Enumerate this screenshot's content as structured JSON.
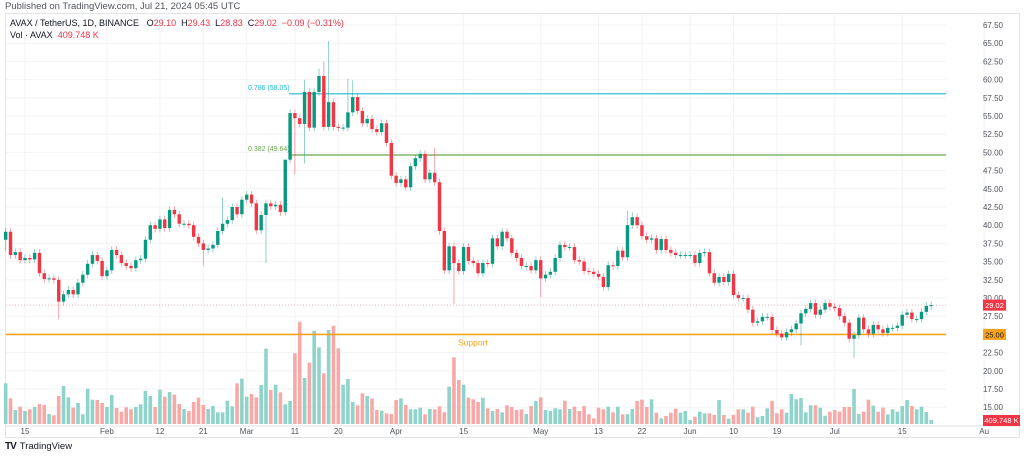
{
  "header": {
    "published": "Published on TradingView.com, Jul 21, 2024 05:45 UTC",
    "symbol": "AVAX / TetherUS, 1D, BINANCE",
    "o_label": "O",
    "o": "29.10",
    "h_label": "H",
    "h": "29.43",
    "l_label": "L",
    "l": "28.83",
    "c_label": "C",
    "c": "29.02",
    "change": "−0.09 (−0.31%)",
    "vol_label": "Vol · AVAX",
    "vol": "409.748 K"
  },
  "footer": {
    "brand": "TradingView",
    "logo": "TV"
  },
  "colors": {
    "up": "#089981",
    "down": "#f23645",
    "up_vol": "#8fd4ca",
    "down_vol": "#f7a9a7",
    "support": "#f7a21b",
    "fib_786": "#22b8d6",
    "fib_382": "#6aa84f",
    "grid": "#f2f3f6"
  },
  "chart_data": {
    "type": "candlestick",
    "interval": "1D",
    "first_date": "2024-01-11",
    "last_date": "2024-07-21",
    "ylim": [
      13.5,
      68.5
    ],
    "grid": true,
    "y_ticks": [
      "67.50",
      "65.00",
      "62.50",
      "60.00",
      "57.50",
      "55.00",
      "52.50",
      "50.00",
      "47.50",
      "45.00",
      "42.50",
      "40.00",
      "37.50",
      "35.00",
      "32.50",
      "30.00",
      "27.50",
      "22.50",
      "20.00",
      "17.50",
      "15.00"
    ],
    "x_ticks": [
      {
        "label": "15",
        "index": 4
      },
      {
        "label": "Feb",
        "index": 21
      },
      {
        "label": "12",
        "index": 32
      },
      {
        "label": "21",
        "index": 41
      },
      {
        "label": "Mar",
        "index": 50
      },
      {
        "label": "11",
        "index": 60
      },
      {
        "label": "20",
        "index": 69
      },
      {
        "label": "Apr",
        "index": 81
      },
      {
        "label": "15",
        "index": 95
      },
      {
        "label": "May",
        "index": 111
      },
      {
        "label": "13",
        "index": 123
      },
      {
        "label": "22",
        "index": 132
      },
      {
        "label": "Jun",
        "index": 142
      },
      {
        "label": "10",
        "index": 151
      },
      {
        "label": "19",
        "index": 160
      },
      {
        "label": "Jul",
        "index": 172
      },
      {
        "label": "15",
        "index": 186
      },
      {
        "label": "Au",
        "index": 203
      }
    ],
    "first_open": 38.0,
    "closes": [
      39.1,
      35.9,
      36.3,
      35.2,
      35.5,
      35.3,
      36.2,
      33.4,
      32.6,
      32.7,
      32.5,
      29.5,
      30.5,
      31.1,
      30.5,
      32.1,
      33.2,
      34.7,
      35.9,
      35.1,
      33.0,
      33.8,
      36.6,
      35.9,
      34.8,
      34.4,
      34.1,
      35.2,
      35.4,
      38.0,
      40.0,
      39.5,
      40.8,
      39.6,
      42.1,
      41.5,
      40.2,
      40.2,
      40.0,
      38.4,
      37.5,
      36.6,
      36.8,
      37.3,
      39.2,
      40.2,
      40.7,
      42.5,
      41.5,
      43.5,
      44.2,
      43.0,
      39.3,
      41.4,
      43.0,
      42.6,
      42.8,
      41.8,
      49.0,
      55.4,
      54.7,
      53.9,
      58.3,
      53.4,
      58.3,
      60.5,
      53.5,
      56.9,
      53.5,
      53.4,
      53.4,
      55.5,
      57.6,
      55.7,
      54.0,
      54.6,
      53.2,
      52.8,
      54.0,
      51.3,
      46.8,
      45.8,
      46.3,
      45.2,
      48.1,
      49.2,
      49.8,
      46.3,
      47.2,
      45.9,
      39.2,
      33.8,
      37.1,
      34.8,
      33.7,
      37.0,
      35.1,
      34.8,
      33.4,
      34.8,
      34.7,
      38.2,
      37.1,
      39.1,
      38.2,
      36.2,
      35.5,
      34.4,
      34.4,
      33.8,
      35.2,
      32.7,
      33.2,
      33.6,
      35.5,
      37.3,
      37.0,
      37.0,
      35.2,
      35.0,
      33.7,
      33.6,
      33.3,
      32.9,
      31.5,
      34.5,
      34.4,
      36.5,
      35.6,
      40.0,
      41.1,
      40.0,
      38.5,
      38.0,
      38.2,
      36.6,
      38.1,
      36.6,
      36.2,
      35.9,
      35.9,
      35.9,
      35.9,
      34.8,
      36.2,
      36.3,
      33.4,
      32.1,
      32.9,
      32.2,
      33.3,
      30.4,
      30.0,
      30.0,
      28.4,
      26.6,
      26.8,
      27.4,
      27.4,
      25.6,
      25.1,
      24.6,
      25.3,
      25.7,
      26.5,
      27.9,
      28.5,
      29.3,
      27.7,
      28.4,
      29.3,
      28.8,
      28.6,
      27.5,
      26.6,
      24.4,
      24.9,
      27.3,
      25.7,
      25.1,
      26.3,
      25.7,
      25.2,
      25.9,
      25.9,
      26.2,
      27.7,
      28.0,
      27.1,
      27.1,
      28.1,
      28.9,
      29.02
    ],
    "notable_highs": {
      "45": 43.8,
      "58": 45.0,
      "62": 60.0,
      "65": 61.5,
      "66": 62.5,
      "67": 65.3,
      "71": 60.1,
      "72": 59.9,
      "89": 50.6,
      "129": 42.0,
      "130": 41.8
    },
    "notable_lows": {
      "0": 36.5,
      "11": 27.1,
      "41": 34.5,
      "54": 34.8,
      "60": 47.0,
      "62": 48.5,
      "93": 29.2,
      "111": 30.1,
      "165": 23.5,
      "176": 21.7
    },
    "volume_k": [
      4070,
      2570,
      1400,
      1730,
      1300,
      1470,
      1700,
      2000,
      1900,
      1000,
      870,
      2800,
      3800,
      2670,
      1630,
      2100,
      970,
      3530,
      2430,
      2400,
      2100,
      1700,
      2900,
      1600,
      1230,
      1670,
      1470,
      1700,
      1970,
      3300,
      2800,
      1700,
      3430,
      2730,
      3200,
      2930,
      2000,
      1500,
      1300,
      2200,
      2630,
      1900,
      1500,
      1800,
      1170,
      1170,
      2330,
      1770,
      4070,
      4530,
      2730,
      3000,
      2670,
      3900,
      7530,
      3400,
      3930,
      3170,
      1970,
      2300,
      7070,
      10230,
      4600,
      6130,
      9330,
      7670,
      5070,
      9400,
      9830,
      7570,
      3930,
      4500,
      2200,
      1870,
      3070,
      2800,
      2570,
      1400,
      1330,
      1070,
      1000,
      2400,
      2570,
      1900,
      1470,
      1470,
      1630,
      970,
      1500,
      1470,
      1770,
      1170,
      3730,
      6670,
      4400,
      3930,
      2630,
      2470,
      2200,
      2630,
      1570,
      1300,
      1500,
      1170,
      1870,
      1700,
      1400,
      1470,
      1000,
      1800,
      2300,
      2670,
      1400,
      1300,
      1570,
      1470,
      2330,
      1500,
      1730,
      1300,
      1800,
      970,
      570,
      1630,
      1470,
      1730,
      1170,
      1730,
      970,
      970,
      1500,
      2300,
      2430,
      1700,
      2470,
      1130,
      570,
      800,
      1130,
      1530,
      1130,
      1300,
      400,
      730,
      1230,
      1070,
      1070,
      900,
      2400,
      900,
      530,
      900,
      1470,
      1470,
      1130,
      1730,
      670,
      800,
      1570,
      2300,
      1070,
      1470,
      1130,
      3000,
      2470,
      2600,
      1170,
      1870,
      1870,
      1630,
      830,
      1230,
      1400,
      1230,
      1700,
      1700,
      3500,
      1000,
      1230,
      2430,
      1830,
      1230,
      1630,
      970,
      1470,
      1230,
      1800,
      2400,
      1800,
      1470,
      1730,
      1200,
      410
    ],
    "last_price": {
      "label": "29.02",
      "value": 29.02
    },
    "last_volume_label": "409.748 K",
    "support": {
      "label": "Support",
      "value": 25.0,
      "tag": "25.00"
    },
    "fib_levels": [
      {
        "label": "0.786 (58.05)",
        "value": 58.05
      },
      {
        "label": "0.382 (49.64)",
        "value": 49.64
      }
    ]
  }
}
